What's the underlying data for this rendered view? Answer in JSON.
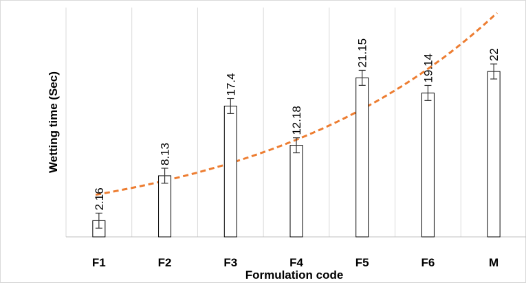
{
  "chart_data": {
    "type": "bar",
    "title": "",
    "xlabel": "Formulation code",
    "ylabel": "Wetting time  (Sec)",
    "categories": [
      "F1",
      "F2",
      "F3",
      "F4",
      "F5",
      "F6",
      "M"
    ],
    "values": [
      2.16,
      8.13,
      17.4,
      12.18,
      21.15,
      19.14,
      22
    ],
    "data_labels": [
      "2.16",
      "8.13",
      "17.4",
      "12.18",
      "21.15",
      "19.14",
      "22"
    ],
    "error": [
      1.0,
      1.0,
      1.0,
      1.0,
      1.0,
      1.0,
      1.0
    ],
    "ylim": [
      0,
      30.5
    ],
    "grid": "vertical",
    "trendline": {
      "type": "exponential",
      "style": "dashed",
      "color": "#ed7d31",
      "start": 5.6,
      "end": 29.8
    },
    "colors": {
      "bar_fill": "#ffffff",
      "bar_stroke": "#000000",
      "grid": "#d9d9d9",
      "axis": "#bfbfbf"
    }
  }
}
